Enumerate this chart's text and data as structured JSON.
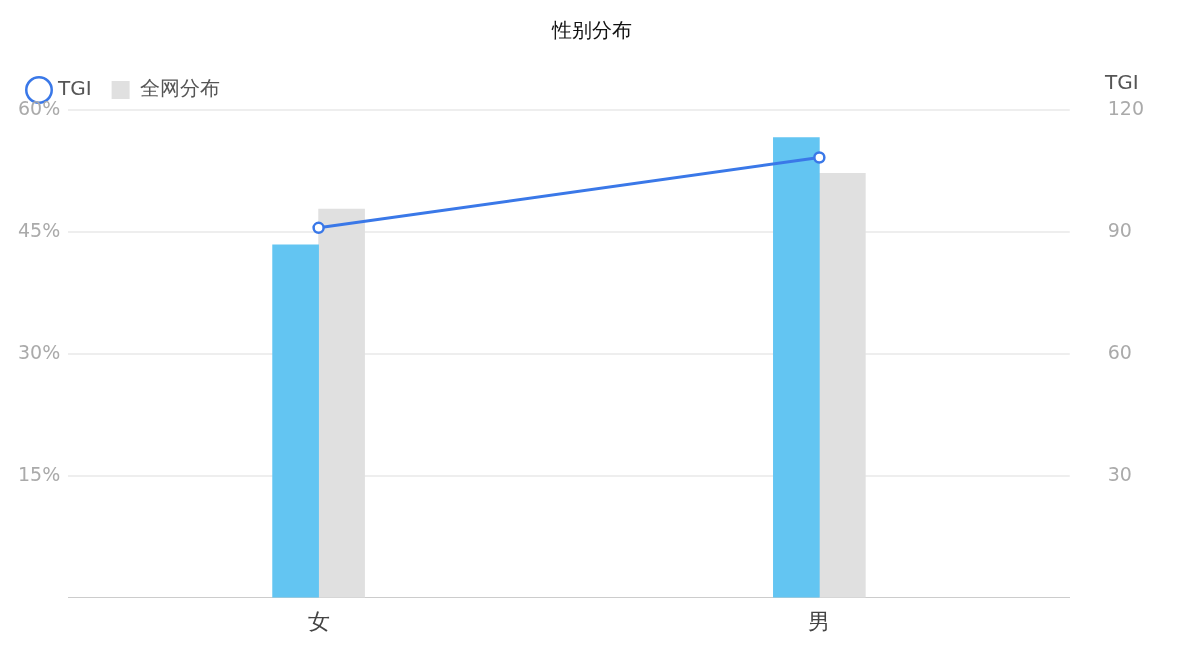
{
  "chart_data": {
    "type": "bar",
    "title": "性别分布",
    "categories": [
      "女",
      "男"
    ],
    "series": [
      {
        "color": "#63c5f2",
        "values": [
          43.4,
          56.6
        ]
      },
      {
        "name": "全网分布",
        "color": "#e0e0e0",
        "values": [
          47.8,
          52.2
        ]
      },
      {
        "name": "TGI",
        "type": "line",
        "axis": "y2",
        "color": "#3a78e8",
        "values": [
          91,
          108.3
        ]
      }
    ],
    "ylim": [
      0,
      60
    ],
    "yticks": [
      {
        "value": 15,
        "label": "15%"
      },
      {
        "value": 30,
        "label": "30%"
      },
      {
        "value": 45,
        "label": "45%"
      },
      {
        "value": 60,
        "label": "60%"
      }
    ],
    "y2lim": [
      0,
      120
    ],
    "y2ticks": [
      30,
      60,
      90,
      120
    ],
    "y2label": "TGI",
    "grid": "y",
    "legend": "top left",
    "marker": "circle",
    "line_style": "solid"
  }
}
